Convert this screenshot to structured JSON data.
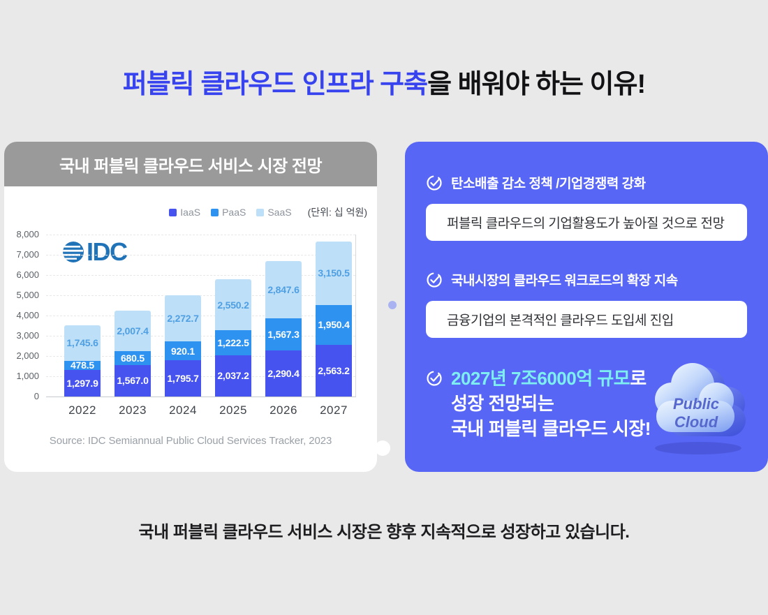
{
  "page": {
    "title_highlight": "퍼블릭 클라우드 인프라 구축",
    "title_rest": "을 배워야 하는 이유!",
    "footer": "국내 퍼블릭 클라우드 서비스 시장은 향후 지속적으로 성장하고 있습니다."
  },
  "chart_card": {
    "logo_text": "IDC",
    "source": "Source: IDC Semiannual Public Cloud Services Tracker, 2023"
  },
  "chart_data": {
    "type": "bar",
    "stacked": true,
    "title": "국내 퍼블릭 클라우드 서비스 시장 전망",
    "unit": "(단위: 십 억원)",
    "categories": [
      "2022",
      "2023",
      "2024",
      "2025",
      "2026",
      "2027"
    ],
    "series": [
      {
        "name": "IaaS",
        "color": "#4653ee",
        "label_color": "#ffffff",
        "values": [
          1297.9,
          1567.0,
          1795.7,
          2037.2,
          2290.4,
          2563.2
        ]
      },
      {
        "name": "PaaS",
        "color": "#2e93f0",
        "label_color": "#ffffff",
        "values": [
          478.5,
          680.5,
          920.1,
          1222.5,
          1567.3,
          1950.4
        ]
      },
      {
        "name": "SaaS",
        "color": "#bddff7",
        "label_color": "#4f9fe3",
        "values": [
          1745.6,
          2007.4,
          2272.7,
          2550.2,
          2847.6,
          3150.5
        ]
      }
    ],
    "ylim": [
      0,
      8000
    ],
    "ytick_step": 1000,
    "grid": true,
    "legend_position": "top-right"
  },
  "info_panel": {
    "items": [
      {
        "heading": "탄소배출 감소 정책 /기업경쟁력 강화",
        "box": "퍼블릭 클라우드의 기업활용도가 높아질 것으로 전망"
      },
      {
        "heading": "국내시장의 클라우드 워크로드의 확장 지속",
        "box": "금융기업의 본격적인 클라우드 도입세 진입"
      }
    ],
    "highlight": {
      "line1_highlight": "2027년 7조6000억 규모",
      "line1_rest": "로",
      "line2": "성장 전망되는",
      "line3": "국내 퍼블릭 클라우드 시장!"
    },
    "cloud_label_line1": "Public",
    "cloud_label_line2": "Cloud"
  },
  "colors": {
    "background": "#e9e9ea",
    "title_accent": "#3743ee",
    "card_header_gray": "#9a9a9a",
    "info_panel_blue": "#5866f5",
    "highlight_aqua": "#7eeff1",
    "idc_logo_blue": "#2173b8"
  }
}
